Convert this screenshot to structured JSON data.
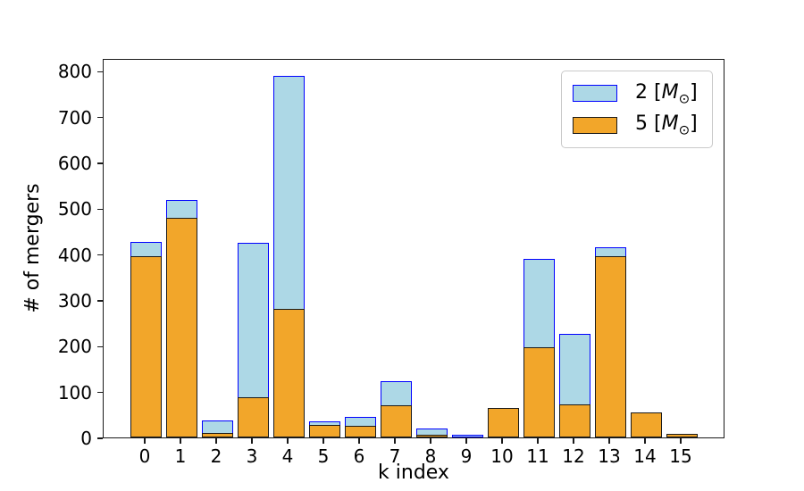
{
  "chart_data": {
    "type": "bar",
    "bar_mode": "overlay",
    "title": "",
    "xlabel": "k index",
    "ylabel": "# of mergers",
    "categories": [
      "0",
      "1",
      "2",
      "3",
      "4",
      "5",
      "6",
      "7",
      "8",
      "9",
      "10",
      "11",
      "12",
      "13",
      "14",
      "15"
    ],
    "yticks": [
      0,
      100,
      200,
      300,
      400,
      500,
      600,
      700,
      800
    ],
    "ylim": [
      0,
      828
    ],
    "grid": false,
    "legend_position": "upper-right",
    "series": [
      {
        "name": "2 [M⊙]",
        "fill_color": "#add8e6",
        "edge_color": "#0000ff",
        "values": [
          427,
          518,
          37,
          424,
          790,
          35,
          44,
          122,
          20,
          5,
          0,
          390,
          226,
          415,
          0,
          0
        ]
      },
      {
        "name": "5 [M⊙]",
        "fill_color": "#f2a62a",
        "edge_color": "#1a1a1a",
        "values": [
          395,
          480,
          10,
          88,
          280,
          28,
          25,
          70,
          5,
          0,
          64,
          196,
          72,
          396,
          54,
          7
        ]
      }
    ]
  },
  "legend": {
    "items": [
      {
        "prefix": "2 [",
        "symbol": "M",
        "subscript": "⊙",
        "suffix": "]"
      },
      {
        "prefix": "5 [",
        "symbol": "M",
        "subscript": "⊙",
        "suffix": "]"
      }
    ]
  }
}
